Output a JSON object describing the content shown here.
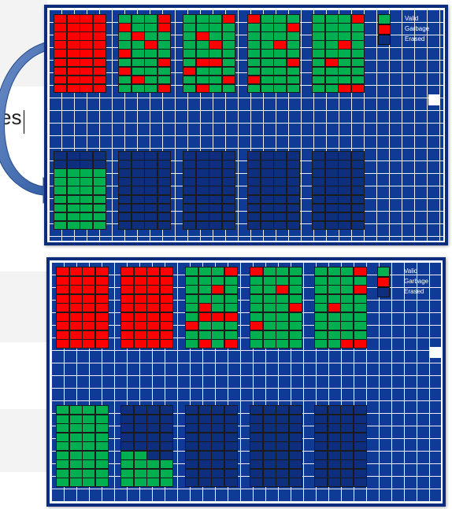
{
  "background_text": "es",
  "colors": {
    "valid": "#00b050",
    "garbage": "#ff0000",
    "erased": "#0d2f7e",
    "panel": "#0f3a96",
    "grid": "#ffffff"
  },
  "legend": [
    {
      "label": "Valid",
      "state": "valid"
    },
    {
      "label": "Garbage",
      "state": "garbage"
    },
    {
      "label": "Erased",
      "state": "erased"
    }
  ],
  "panels": [
    {
      "name": "before-gc",
      "blocks": [
        {
          "state": "garbage-full",
          "garbage": []
        },
        {
          "state": "mixed",
          "garbage": [
            [
              0,
              3
            ],
            [
              1,
              0
            ],
            [
              1,
              3
            ],
            [
              2,
              1
            ],
            [
              3,
              2
            ],
            [
              4,
              0
            ],
            [
              5,
              3
            ],
            [
              6,
              0
            ],
            [
              7,
              1
            ],
            [
              8,
              3
            ]
          ]
        },
        {
          "state": "mixed",
          "garbage": [
            [
              0,
              3
            ],
            [
              2,
              1
            ],
            [
              3,
              2
            ],
            [
              5,
              1
            ],
            [
              5,
              2
            ],
            [
              6,
              0
            ],
            [
              7,
              3
            ],
            [
              8,
              1
            ]
          ]
        },
        {
          "state": "mixed",
          "garbage": [
            [
              0,
              0
            ],
            [
              1,
              3
            ],
            [
              3,
              2
            ],
            [
              5,
              3
            ],
            [
              7,
              0
            ]
          ]
        },
        {
          "state": "mixed",
          "garbage": [
            [
              0,
              3
            ],
            [
              3,
              2
            ],
            [
              5,
              1
            ],
            [
              8,
              2
            ],
            [
              8,
              3
            ]
          ]
        },
        {
          "state": "partial",
          "valid_from_row": 2
        },
        {
          "state": "erased"
        },
        {
          "state": "erased"
        },
        {
          "state": "erased"
        },
        {
          "state": "erased"
        }
      ]
    },
    {
      "name": "after-gc",
      "blocks": [
        {
          "state": "garbage-full",
          "garbage": []
        },
        {
          "state": "garbage-full",
          "garbage": []
        },
        {
          "state": "mixed",
          "garbage": [
            [
              0,
              3
            ],
            [
              2,
              2
            ],
            [
              4,
              1
            ],
            [
              6,
              0
            ],
            [
              8,
              3
            ],
            [
              5,
              1
            ],
            [
              5,
              2
            ],
            [
              5,
              3
            ],
            [
              8,
              1
            ]
          ]
        },
        {
          "state": "mixed",
          "garbage": [
            [
              0,
              0
            ],
            [
              2,
              2
            ],
            [
              4,
              3
            ],
            [
              6,
              0
            ]
          ]
        },
        {
          "state": "mixed",
          "garbage": [
            [
              0,
              3
            ],
            [
              2,
              3
            ],
            [
              4,
              1
            ],
            [
              8,
              2
            ],
            [
              8,
              3
            ]
          ]
        },
        {
          "state": "valid-full"
        },
        {
          "state": "partial-bottom",
          "valid_rows_from": 5
        },
        {
          "state": "erased"
        },
        {
          "state": "erased"
        },
        {
          "state": "erased"
        }
      ]
    }
  ]
}
